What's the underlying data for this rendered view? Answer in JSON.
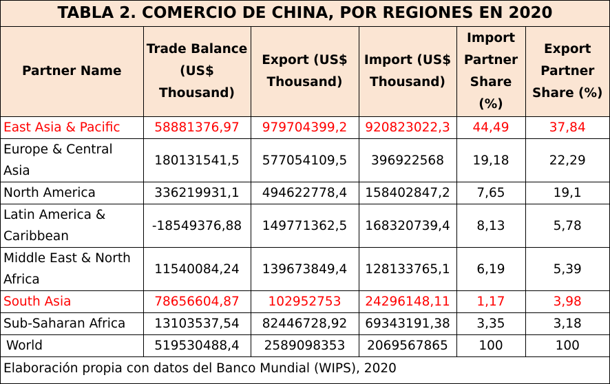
{
  "title": "TABLA 2. COMERCIO DE CHINA, POR REGIONES EN 2020",
  "columns": [
    "Partner Name",
    "Trade Balance (US$ Thousand)",
    "Export (US$ Thousand)",
    "Import (US$ Thousand)",
    "Import Partner Share (%)",
    "Export Partner Share (%)"
  ],
  "rows": [
    {
      "name": "East Asia & Pacific",
      "trade_balance": "58881376,97",
      "export": "979704399,2",
      "import": "920823022,3",
      "import_share": "44,49",
      "export_share": "37,84"
    },
    {
      "name": "Europe & Central Asia",
      "trade_balance": "180131541,5",
      "export": "577054109,5",
      "import": "396922568",
      "import_share": "19,18",
      "export_share": "22,29"
    },
    {
      "name": "North America",
      "trade_balance": "336219931,1",
      "export": "494622778,4",
      "import": "158402847,2",
      "import_share": "7,65",
      "export_share": "19,1"
    },
    {
      "name": "Latin America & Caribbean",
      "trade_balance": "-18549376,88",
      "export": "149771362,5",
      "import": "168320739,4",
      "import_share": "8,13",
      "export_share": "5,78"
    },
    {
      "name": "Middle East & North Africa",
      "trade_balance": "11540084,24",
      "export": "139673849,4",
      "import": "128133765,1",
      "import_share": "6,19",
      "export_share": "5,39"
    },
    {
      "name": "South Asia",
      "trade_balance": "78656604,87",
      "export": "102952753",
      "import": "24296148,11",
      "import_share": "1,17",
      "export_share": "3,98"
    },
    {
      "name": "Sub-Saharan Africa",
      "trade_balance": "13103537,54",
      "export": "82446728,92",
      "import": "69343191,38",
      "import_share": "3,35",
      "export_share": "3,18"
    },
    {
      "name": "World",
      "trade_balance": "519530488,4",
      "export": "2589098353",
      "import": "2069567865",
      "import_share": "100",
      "export_share": "100"
    }
  ],
  "highlighted_rows": [
    "East Asia & Pacific",
    "South Asia"
  ],
  "colors": {
    "header_bg": "#fbe5d3",
    "highlight_text": "#ff0000"
  },
  "footer": "Elaboración propia con datos del Banco Mundial (WIPS), 2020"
}
